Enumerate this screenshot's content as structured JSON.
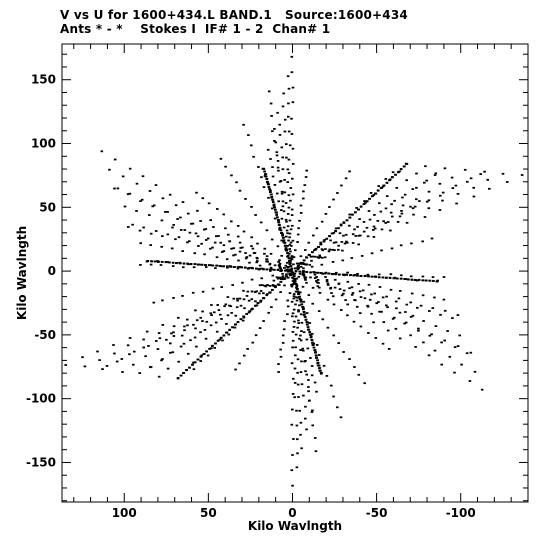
{
  "header": {
    "line1": "V vs U for 1600+434.L BAND.1   Source:1600+434",
    "line2": "Ants * - *    Stokes I  IF# 1 - 2  Chan# 1"
  },
  "chart_data": {
    "type": "scatter",
    "title": "V vs U for 1600+434.L BAND.1   Source:1600+434",
    "subtitle": "Ants * - *    Stokes I  IF# 1 - 2  Chan# 1",
    "xlabel": "Kilo Wavlngth",
    "ylabel": "Kilo Wavlngth",
    "xlim": [
      137,
      -140
    ],
    "ylim": [
      -181,
      178
    ],
    "x_direction": "reversed",
    "grid": false,
    "xticks": [
      100,
      50,
      0,
      -50,
      -100
    ],
    "xtick_labels": [
      "100",
      "50",
      "0",
      "-50",
      "-100"
    ],
    "yticks": [
      150,
      100,
      50,
      0,
      -50,
      -100,
      -150
    ],
    "ytick_labels": [
      "150",
      "100",
      "50",
      "0",
      "-50",
      "-100",
      "-150"
    ],
    "arms": [
      {
        "u": 0,
        "v": 168
      },
      {
        "u": -137,
        "v": 75
      },
      {
        "u": -113,
        "v": -93
      },
      {
        "u": 0,
        "v": -168
      },
      {
        "u": 135,
        "v": -73
      },
      {
        "u": 113,
        "v": 94
      }
    ],
    "inner_spokes": [
      {
        "u": 17,
        "v": 80
      },
      {
        "u": -68,
        "v": 84
      },
      {
        "u": -86,
        "v": -8
      },
      {
        "u": -17,
        "v": -80
      },
      {
        "u": 68,
        "v": -84
      },
      {
        "u": 86,
        "v": 8
      }
    ]
  }
}
